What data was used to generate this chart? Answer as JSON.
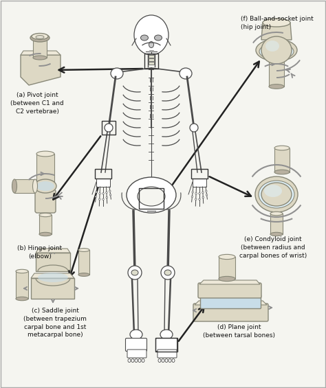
{
  "background_color": "#f5f5f0",
  "bone_color": "#ddd8c4",
  "bone_light": "#ede8d8",
  "bone_dark": "#b8b0a0",
  "bone_edge": "#888878",
  "blue_cart": "#c8dde8",
  "blue_light": "#ddeef5",
  "motion_color": "#909090",
  "arrow_color": "#222222",
  "text_color": "#111111",
  "border_color": "#bbbbbb",
  "labels": {
    "a": "(a) Pivot joint\n(between C1 and\nC2 vertebrae)",
    "b": "(b) Hinge joint\n(elbow)",
    "c": "(c) Saddle joint\n(between trapezium\ncarpal bone and 1st\nmetacarpal bone)",
    "d": "(d) Plane joint\n(between tarsal bones)",
    "e": "(e) Condyloid joint\n(between radius and\ncarpal bones of wrist)",
    "f": "(f) Ball-and-socket joint\n(hip joint)"
  },
  "figsize": [
    4.74,
    5.65
  ],
  "dpi": 100
}
